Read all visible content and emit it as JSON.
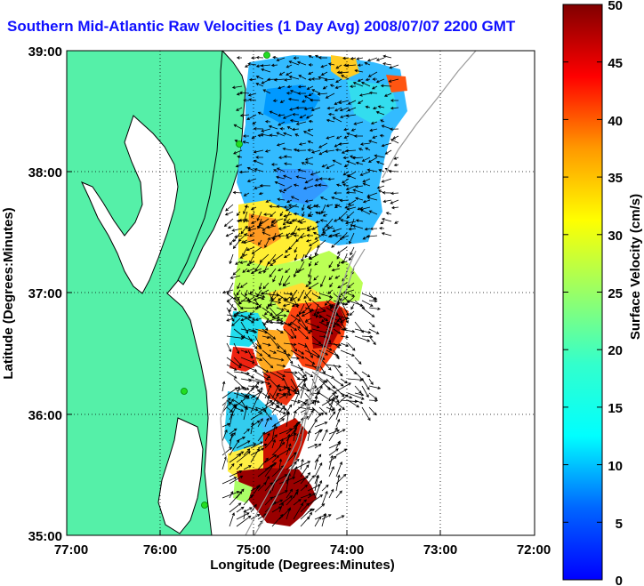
{
  "title": "Southern Mid-Atlantic Raw Velocities (1 Day Avg) 2008/07/07 2200 GMT",
  "x_axis": {
    "label": "Longitude (Degrees:Minutes)",
    "ticks": [
      "77:00",
      "76:00",
      "75:00",
      "74:00",
      "73:00",
      "72:00"
    ]
  },
  "y_axis": {
    "label": "Latitude (Degrees:Minutes)",
    "ticks": [
      "39:00",
      "38:00",
      "37:00",
      "36:00",
      "35:00"
    ]
  },
  "colorbar": {
    "label": "Surface Velocity (cm/s)",
    "ticks": [
      "50",
      "45",
      "40",
      "35",
      "30",
      "25",
      "20",
      "15",
      "10",
      "5",
      "0"
    ],
    "range": [
      0,
      50
    ],
    "colormap": "jet"
  },
  "map": {
    "land_color": "#55f0a8",
    "water_color": "#ffffff",
    "coast_color": "#000000",
    "bathymetry_color": "#9a9a9a",
    "grid": "dotted",
    "station_color": "#22dd22"
  }
}
